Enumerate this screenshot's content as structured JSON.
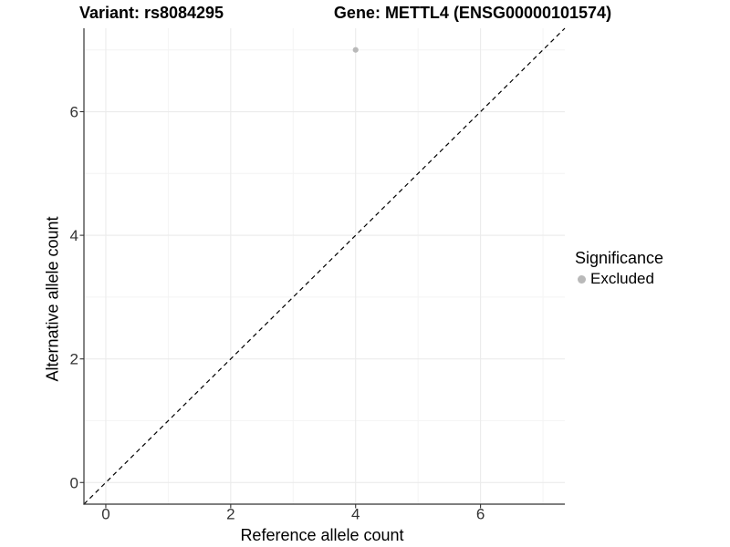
{
  "chart_data": {
    "type": "scatter",
    "title_left": "Variant: rs8084295",
    "title_right": "Gene: METTL4 (ENSG00000101574)",
    "xlabel": "Reference allele count",
    "ylabel": "Alternative allele count",
    "xlim": [
      -0.35,
      7.35
    ],
    "ylim": [
      -0.35,
      7.35
    ],
    "x_ticks": [
      0,
      2,
      4,
      6
    ],
    "y_ticks": [
      0,
      2,
      4,
      6
    ],
    "x_minor_ticks": [
      1,
      3,
      5,
      7
    ],
    "y_minor_ticks": [
      1,
      3,
      5,
      7
    ],
    "grid": true,
    "series": [
      {
        "name": "Excluded",
        "color": "#b9b9b9",
        "points": [
          {
            "x": 4,
            "y": 7
          }
        ]
      }
    ],
    "reference_line": {
      "type": "identity",
      "style": "dashed",
      "color": "#000000",
      "from": [
        -0.35,
        -0.35
      ],
      "to": [
        7.35,
        7.35
      ]
    },
    "legend": {
      "title": "Significance",
      "position": "right",
      "items": [
        {
          "label": "Excluded",
          "color": "#b9b9b9"
        }
      ]
    }
  },
  "colors": {
    "background": "#ffffff",
    "grid_major": "#ebebeb",
    "grid_minor": "#f4f4f4",
    "axis_line": "#333333",
    "tick_mark": "#333333",
    "tick_label": "#333333",
    "title_text": "#000000"
  }
}
